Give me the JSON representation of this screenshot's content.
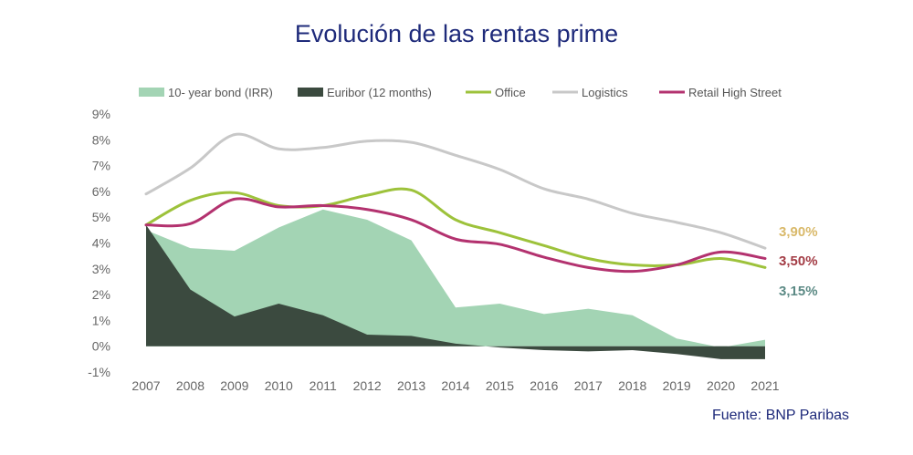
{
  "title": "Evolución de las rentas prime",
  "source": "Fuente:  BNP Paribas",
  "chart_data": {
    "type": "area",
    "title": "Evolución de las rentas prime",
    "x": [
      "2007",
      "2008",
      "2009",
      "2010",
      "2011",
      "2012",
      "2013",
      "2014",
      "2015",
      "2016",
      "2017",
      "2018",
      "2019",
      "2020",
      "2021"
    ],
    "ylim": [
      -1,
      9
    ],
    "yticks": [
      "-1%",
      "0%",
      "1%",
      "2%",
      "3%",
      "4%",
      "5%",
      "6%",
      "7%",
      "8%",
      "9%"
    ],
    "grid": false,
    "legend": "top",
    "series": [
      {
        "name": "10- year bond (IRR)",
        "kind": "area",
        "color": "#a3d4b4",
        "values": [
          4.5,
          3.8,
          3.7,
          4.6,
          5.3,
          4.9,
          4.1,
          1.5,
          1.65,
          1.25,
          1.45,
          1.2,
          0.3,
          -0.05,
          0.25
        ]
      },
      {
        "name": "Euribor (12 months)",
        "kind": "area",
        "color": "#3b4a3f",
        "values": [
          4.7,
          2.2,
          1.15,
          1.65,
          1.2,
          0.45,
          0.4,
          0.1,
          -0.05,
          -0.15,
          -0.2,
          -0.15,
          -0.3,
          -0.5,
          -0.5
        ]
      },
      {
        "name": "Office",
        "kind": "line",
        "color": "#9dc23b",
        "values": [
          4.7,
          5.65,
          5.95,
          5.45,
          5.45,
          5.85,
          6.05,
          4.9,
          4.4,
          3.9,
          3.4,
          3.15,
          3.15,
          3.4,
          3.05
        ]
      },
      {
        "name": "Logistics",
        "kind": "line",
        "color": "#c8c8c8",
        "values": [
          5.9,
          6.9,
          8.2,
          7.65,
          7.7,
          7.95,
          7.9,
          7.4,
          6.85,
          6.1,
          5.7,
          5.15,
          4.8,
          4.4,
          3.8
        ]
      },
      {
        "name": "Retail High Street",
        "kind": "line",
        "color": "#b3326f",
        "values": [
          4.7,
          4.75,
          5.7,
          5.4,
          5.45,
          5.3,
          4.9,
          4.15,
          3.95,
          3.45,
          3.05,
          2.9,
          3.15,
          3.65,
          3.4
        ]
      }
    ],
    "annotations": [
      {
        "text": "3,90%",
        "color": "#d9b96a",
        "y": 3.9
      },
      {
        "text": "3,50%",
        "color": "#a33c45",
        "y": 3.5
      },
      {
        "text": "3,15%",
        "color": "#5c8a85",
        "y": 3.15
      }
    ]
  }
}
